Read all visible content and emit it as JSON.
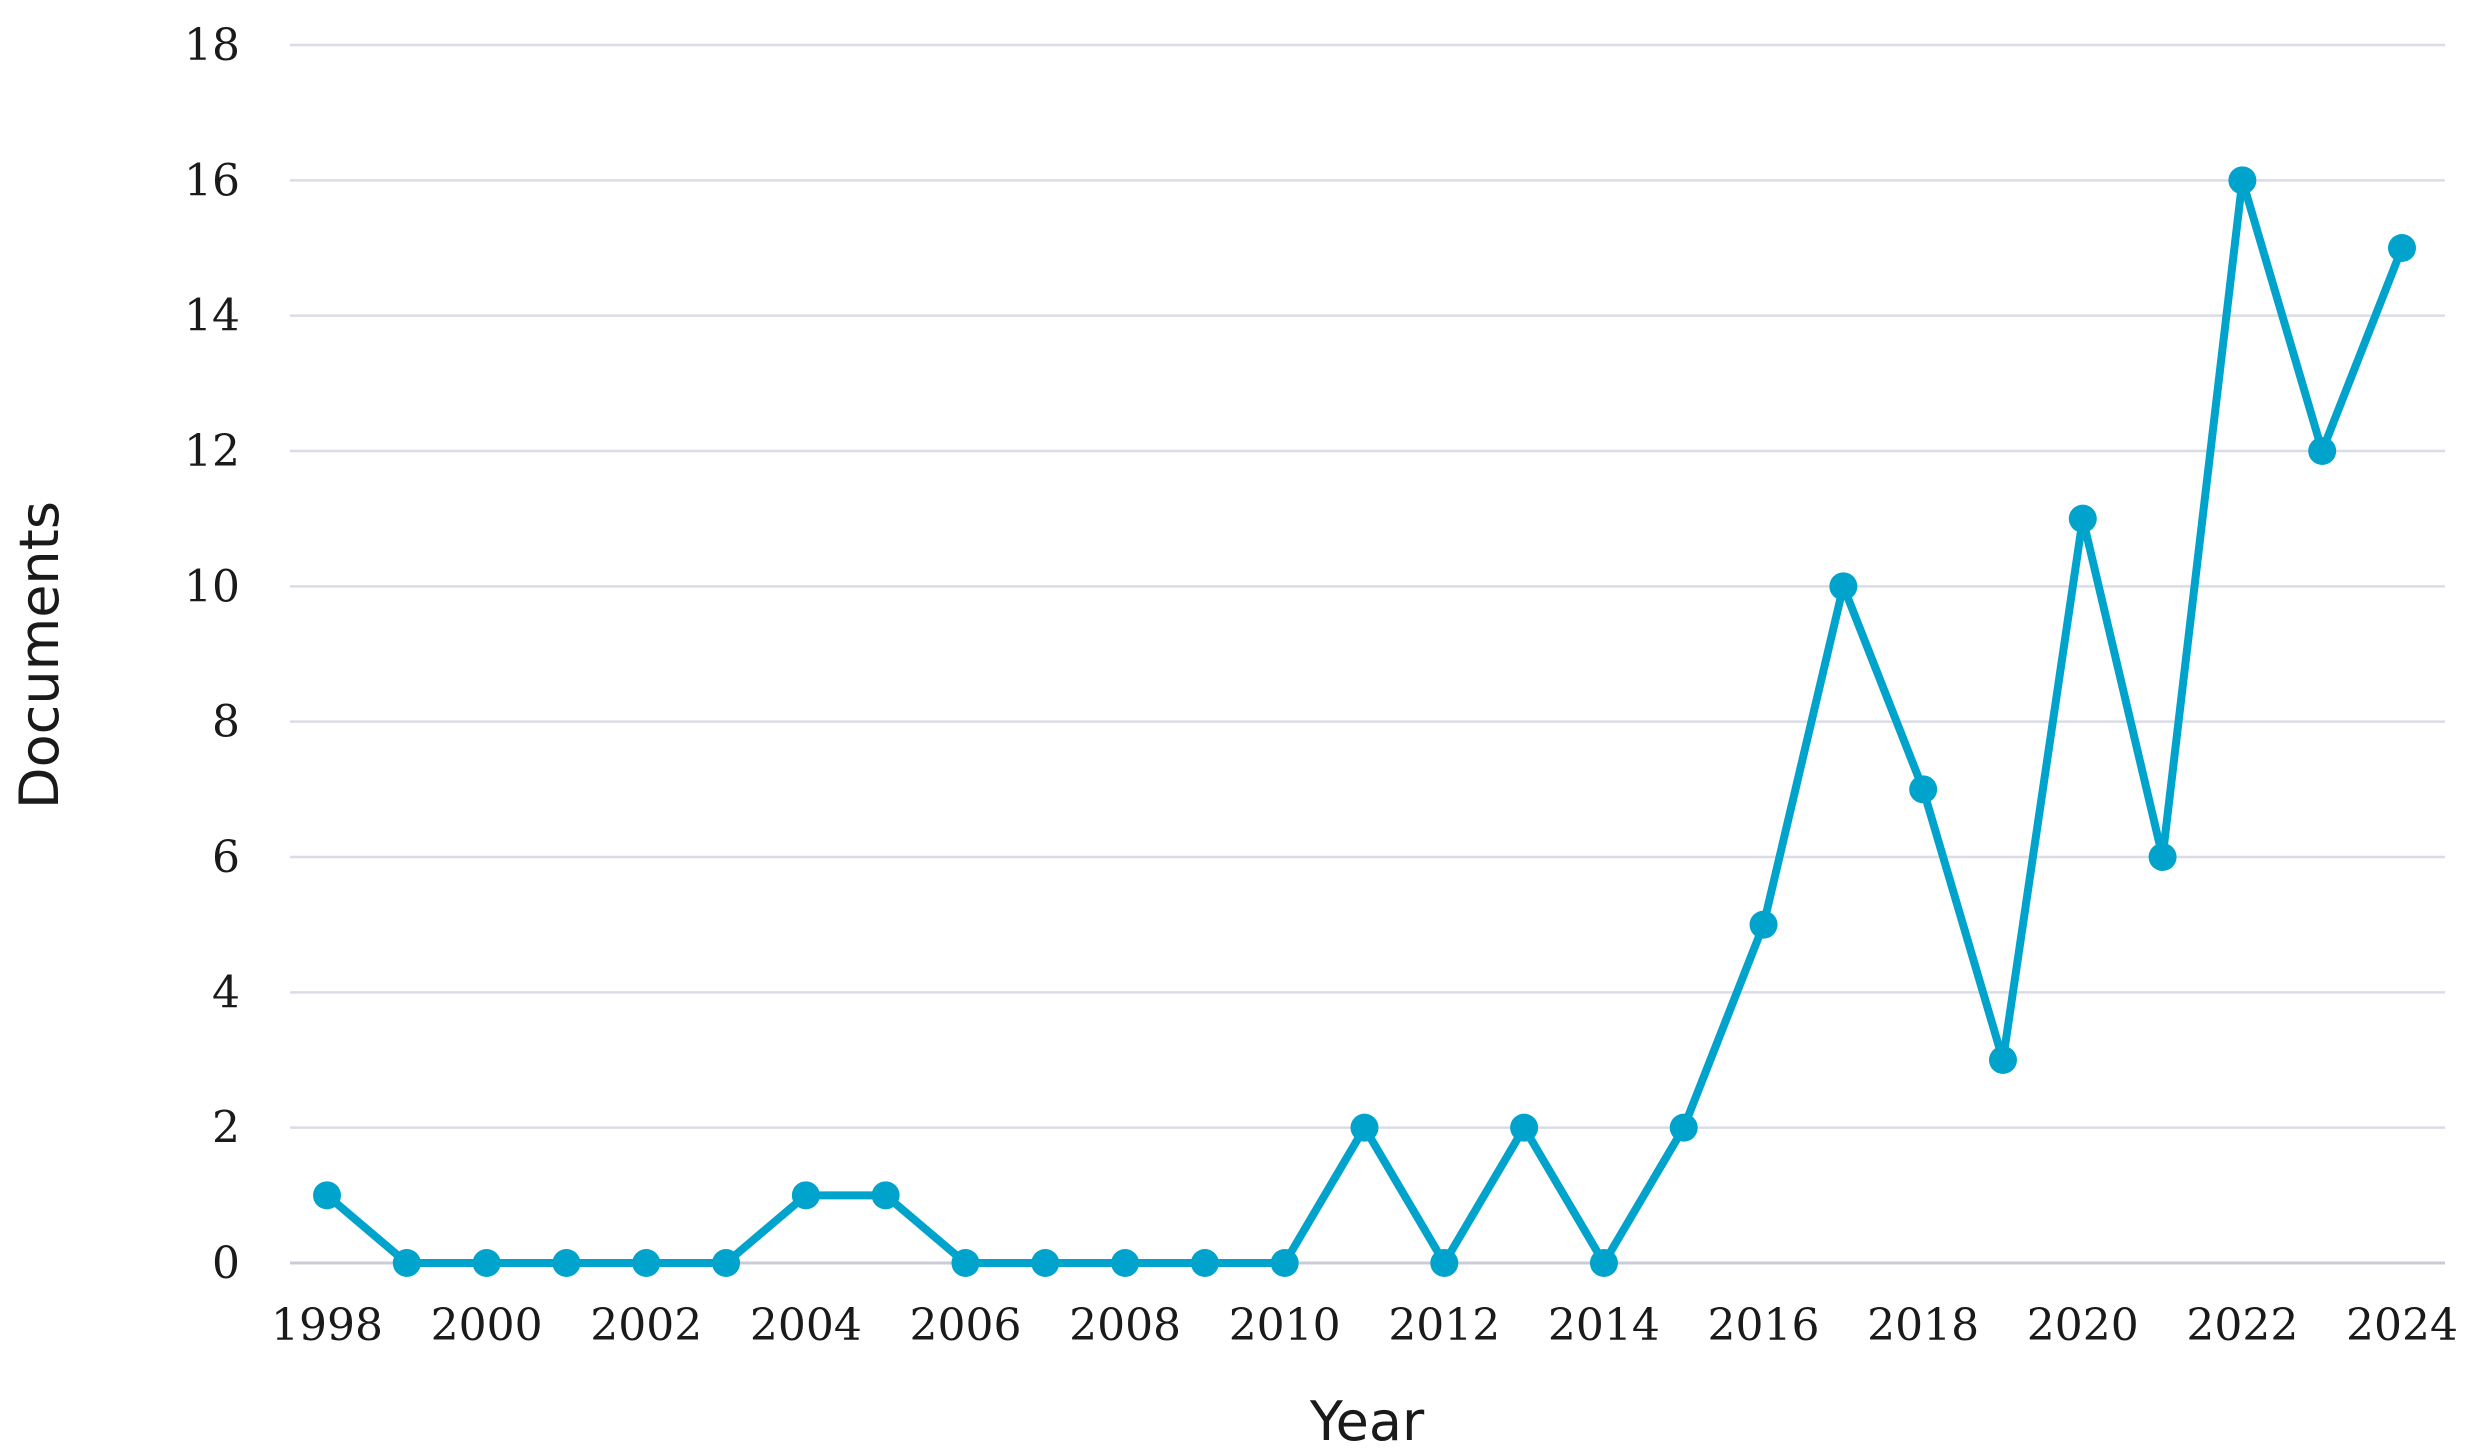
{
  "chart_data": {
    "type": "line",
    "title": "",
    "xlabel": "Year",
    "ylabel": "Documents",
    "x": [
      1998,
      1999,
      2000,
      2001,
      2002,
      2003,
      2004,
      2005,
      2006,
      2007,
      2008,
      2009,
      2010,
      2011,
      2012,
      2013,
      2014,
      2015,
      2016,
      2017,
      2018,
      2019,
      2020,
      2021,
      2022,
      2023,
      2024
    ],
    "series": [
      {
        "values": [
          1,
          0,
          0,
          0,
          0,
          0,
          1,
          1,
          0,
          0,
          0,
          0,
          0,
          2,
          0,
          2,
          0,
          2,
          5,
          10,
          7,
          3,
          11,
          6,
          16,
          12,
          15
        ]
      }
    ],
    "x_tick_labels": [
      "1998",
      "2000",
      "2002",
      "2004",
      "2006",
      "2008",
      "2010",
      "2012",
      "2014",
      "2016",
      "2018",
      "2020",
      "2022",
      "2024"
    ],
    "y_tick_labels": [
      "0",
      "2",
      "4",
      "6",
      "8",
      "10",
      "12",
      "14",
      "16",
      "18"
    ],
    "ylim": [
      0,
      18
    ],
    "xlim": [
      1998,
      2024
    ],
    "grid": true,
    "legend": "none",
    "line_color": "#00A3CC"
  }
}
